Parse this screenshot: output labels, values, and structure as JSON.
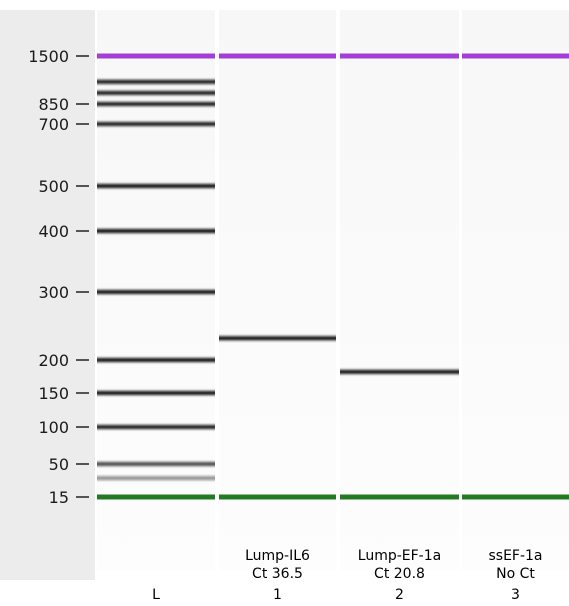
{
  "chart_data": {
    "type": "gel_electrophoresis",
    "ladder_ticks": [
      1500,
      850,
      700,
      500,
      400,
      300,
      200,
      150,
      100,
      50,
      15
    ],
    "upper_marker": {
      "size": 1500,
      "color": "#a53ed6"
    },
    "lower_marker": {
      "size": 15,
      "color": "#237a23"
    },
    "lanes": [
      {
        "id": "L",
        "name": "",
        "ct": "",
        "bands": [
          {
            "size": 1500,
            "intensity": 1.0,
            "kind": "upper_marker"
          },
          {
            "size": 1150,
            "intensity": 0.95
          },
          {
            "size": 1000,
            "intensity": 0.95
          },
          {
            "size": 850,
            "intensity": 0.95
          },
          {
            "size": 700,
            "intensity": 0.95
          },
          {
            "size": 500,
            "intensity": 1.0
          },
          {
            "size": 400,
            "intensity": 1.0
          },
          {
            "size": 300,
            "intensity": 1.0
          },
          {
            "size": 200,
            "intensity": 1.0
          },
          {
            "size": 150,
            "intensity": 1.0
          },
          {
            "size": 100,
            "intensity": 0.95
          },
          {
            "size": 50,
            "intensity": 0.75
          },
          {
            "size": 35,
            "intensity": 0.45
          },
          {
            "size": 15,
            "intensity": 1.0,
            "kind": "lower_marker"
          }
        ]
      },
      {
        "id": "1",
        "name": "Lump-IL6",
        "ct": "Ct 36.5",
        "bands": [
          {
            "size": 1500,
            "intensity": 1.0,
            "kind": "upper_marker"
          },
          {
            "size": 232,
            "intensity": 1.0
          },
          {
            "size": 15,
            "intensity": 1.0,
            "kind": "lower_marker"
          }
        ]
      },
      {
        "id": "2",
        "name": "Lump-EF-1a",
        "ct": "Ct 20.8",
        "bands": [
          {
            "size": 1500,
            "intensity": 1.0,
            "kind": "upper_marker"
          },
          {
            "size": 182,
            "intensity": 1.0
          },
          {
            "size": 15,
            "intensity": 1.0,
            "kind": "lower_marker"
          }
        ]
      },
      {
        "id": "3",
        "name": "ssEF-1a",
        "ct": "No Ct",
        "bands": [
          {
            "size": 1500,
            "intensity": 1.0,
            "kind": "upper_marker"
          },
          {
            "size": 15,
            "intensity": 1.0,
            "kind": "lower_marker"
          }
        ]
      }
    ]
  }
}
